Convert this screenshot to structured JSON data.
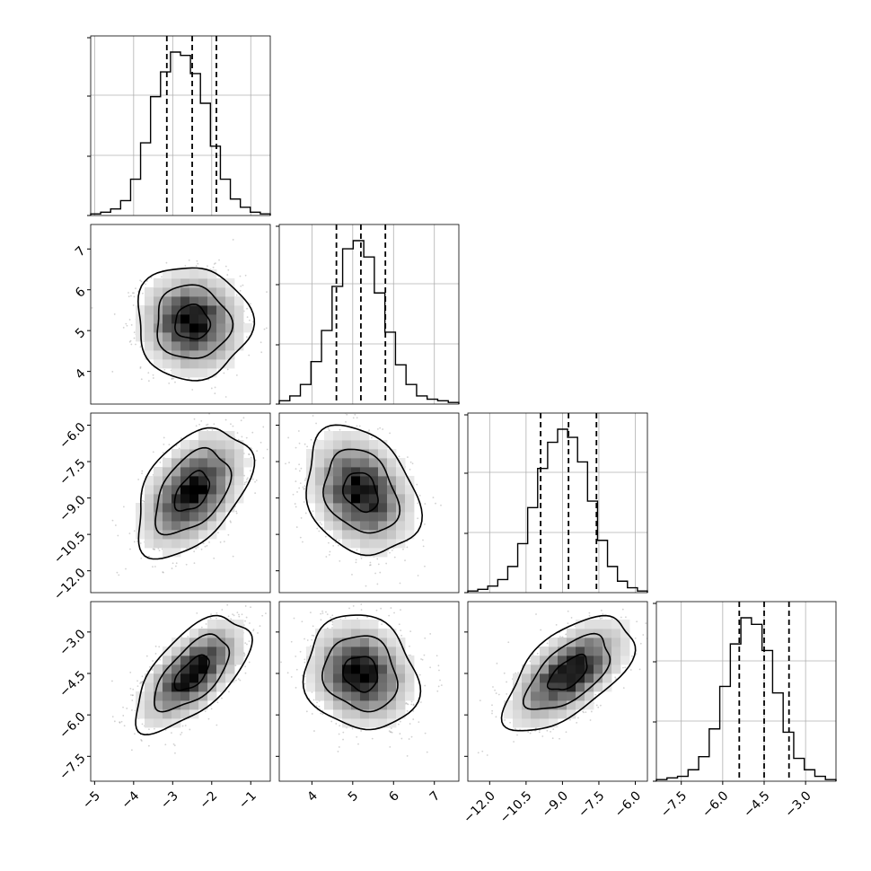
{
  "chart_data": {
    "type": "corner",
    "title": "",
    "parameters": [
      {
        "name": "",
        "ticks": [
          "-5",
          "-4",
          "-3",
          "-2",
          "-1"
        ],
        "tick_values": [
          -5,
          -4,
          -3,
          -2,
          -1
        ],
        "range": [
          -5.1,
          -0.5
        ],
        "quantiles": [
          -3.15,
          -2.5,
          -1.88
        ],
        "hist_counts": [
          1,
          2,
          4,
          9,
          22,
          44,
          72,
          87,
          99,
          97,
          86,
          68,
          42,
          22,
          10,
          5,
          2,
          1
        ]
      },
      {
        "name": "",
        "ticks": [
          "4",
          "5",
          "6",
          "7"
        ],
        "tick_values": [
          4,
          5,
          6,
          7
        ],
        "range": [
          3.2,
          7.6
        ],
        "quantiles": [
          4.6,
          5.2,
          5.8
        ],
        "hist_counts": [
          2,
          5,
          12,
          26,
          45,
          72,
          95,
          100,
          90,
          68,
          44,
          24,
          12,
          5,
          3,
          2,
          1
        ]
      },
      {
        "name": "",
        "ticks": [
          "-12.0",
          "-10.5",
          "-9.0",
          "-7.5",
          "-6.0"
        ],
        "tick_values": [
          -12.0,
          -10.5,
          -9.0,
          -7.5,
          -6.0
        ],
        "range": [
          -12.9,
          -5.5
        ],
        "quantiles": [
          -9.9,
          -8.75,
          -7.6
        ],
        "hist_counts": [
          1,
          2,
          4,
          8,
          16,
          30,
          52,
          76,
          92,
          100,
          95,
          80,
          56,
          32,
          16,
          7,
          3,
          1
        ]
      },
      {
        "name": "",
        "ticks": [
          "-7.5",
          "-6.0",
          "-4.5",
          "-3.0"
        ],
        "tick_values": [
          -7.5,
          -6.0,
          -4.5,
          -3.0
        ],
        "range": [
          -8.4,
          -1.9
        ],
        "quantiles": [
          -5.4,
          -4.5,
          -3.6
        ],
        "hist_counts": [
          1,
          2,
          3,
          7,
          15,
          32,
          58,
          84,
          100,
          96,
          80,
          54,
          30,
          14,
          7,
          3,
          1
        ]
      }
    ],
    "row_ticks": {
      "1": [
        "7",
        "6",
        "5",
        "4"
      ],
      "2": [
        "-6.0",
        "-7.5",
        "-9.0",
        "-10.5",
        "-12.0"
      ],
      "3": [
        "-3.0",
        "-4.5",
        "-6.0",
        "-7.5"
      ]
    },
    "correlations": {
      "1,0": -0.03,
      "2,0": 0.45,
      "2,1": -0.25,
      "3,0": 0.62,
      "3,1": -0.12,
      "3,2": 0.6
    },
    "contour_levels": 3,
    "grid": true,
    "xlabel": "",
    "ylabel": ""
  }
}
